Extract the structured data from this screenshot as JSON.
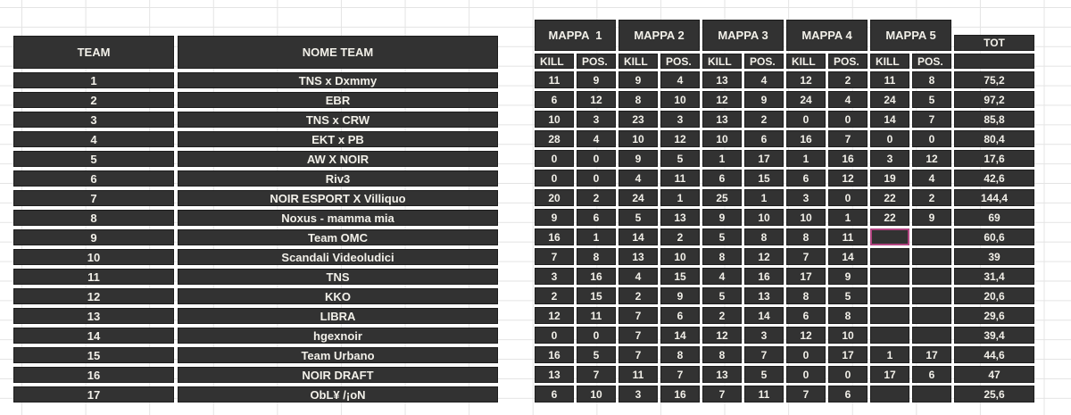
{
  "sheet": {
    "left_table": {
      "col_headers": [
        "TEAM",
        "NOME TEAM"
      ],
      "rows": [
        {
          "rank": "1",
          "name": "TNS x Dxmmy"
        },
        {
          "rank": "2",
          "name": "EBR"
        },
        {
          "rank": "3",
          "name": "TNS x CRW"
        },
        {
          "rank": "4",
          "name": "EKT x PB"
        },
        {
          "rank": "5",
          "name": "AW X NOIR"
        },
        {
          "rank": "6",
          "name": "Riv3"
        },
        {
          "rank": "7",
          "name": "NOIR ESPORT X Villiquo"
        },
        {
          "rank": "8",
          "name": "Noxus - mamma mia"
        },
        {
          "rank": "9",
          "name": "Team OMC"
        },
        {
          "rank": "10",
          "name": "Scandali Videoludici"
        },
        {
          "rank": "11",
          "name": "TNS"
        },
        {
          "rank": "12",
          "name": "KKO"
        },
        {
          "rank": "13",
          "name": "LIBRA"
        },
        {
          "rank": "14",
          "name": "hgexnoir"
        },
        {
          "rank": "15",
          "name": "Team Urbano"
        },
        {
          "rank": "16",
          "name": "NOIR DRAFT"
        },
        {
          "rank": "17",
          "name": "ObL¥ /¡oN"
        }
      ]
    },
    "right_table": {
      "map_headers": [
        "MAPPA  1",
        "MAPPA 2",
        "MAPPA 3",
        "MAPPA 4",
        "MAPPA 5"
      ],
      "kill_label": "KILL",
      "pos_label": "POS.",
      "tot_label": "TOT",
      "rows": [
        {
          "cells": [
            "11",
            "9",
            "9",
            "4",
            "13",
            "4",
            "12",
            "2",
            "11",
            "8"
          ],
          "tot": "75,2"
        },
        {
          "cells": [
            "6",
            "12",
            "8",
            "10",
            "12",
            "9",
            "24",
            "4",
            "24",
            "5"
          ],
          "tot": "97,2"
        },
        {
          "cells": [
            "10",
            "3",
            "23",
            "3",
            "13",
            "2",
            "0",
            "0",
            "14",
            "7"
          ],
          "tot": "85,8"
        },
        {
          "cells": [
            "28",
            "4",
            "10",
            "12",
            "10",
            "6",
            "16",
            "7",
            "0",
            "0"
          ],
          "tot": "80,4"
        },
        {
          "cells": [
            "0",
            "0",
            "9",
            "5",
            "1",
            "17",
            "1",
            "16",
            "3",
            "12"
          ],
          "tot": "17,6"
        },
        {
          "cells": [
            "0",
            "0",
            "4",
            "11",
            "6",
            "15",
            "6",
            "12",
            "19",
            "4"
          ],
          "tot": "42,6"
        },
        {
          "cells": [
            "20",
            "2",
            "24",
            "1",
            "25",
            "1",
            "3",
            "0",
            "22",
            "2"
          ],
          "tot": "144,4"
        },
        {
          "cells": [
            "9",
            "6",
            "5",
            "13",
            "9",
            "10",
            "10",
            "1",
            "22",
            "9"
          ],
          "tot": "69"
        },
        {
          "cells": [
            "16",
            "1",
            "14",
            "2",
            "5",
            "8",
            "8",
            "11",
            "",
            ""
          ],
          "tot": "60,6"
        },
        {
          "cells": [
            "7",
            "8",
            "13",
            "10",
            "8",
            "12",
            "7",
            "14",
            "",
            ""
          ],
          "tot": "39"
        },
        {
          "cells": [
            "3",
            "16",
            "4",
            "15",
            "4",
            "16",
            "17",
            "9",
            "",
            ""
          ],
          "tot": "31,4"
        },
        {
          "cells": [
            "2",
            "15",
            "2",
            "9",
            "5",
            "13",
            "8",
            "5",
            "",
            ""
          ],
          "tot": "20,6"
        },
        {
          "cells": [
            "12",
            "11",
            "7",
            "6",
            "2",
            "14",
            "6",
            "8",
            "",
            ""
          ],
          "tot": "29,6"
        },
        {
          "cells": [
            "0",
            "0",
            "7",
            "14",
            "12",
            "3",
            "12",
            "10",
            "",
            ""
          ],
          "tot": "39,4"
        },
        {
          "cells": [
            "16",
            "5",
            "7",
            "8",
            "8",
            "7",
            "0",
            "17",
            "1",
            "17"
          ],
          "tot": "44,6"
        },
        {
          "cells": [
            "13",
            "7",
            "11",
            "7",
            "13",
            "5",
            "0",
            "0",
            "17",
            "6"
          ],
          "tot": "47"
        },
        {
          "cells": [
            "6",
            "10",
            "3",
            "16",
            "7",
            "11",
            "7",
            "6",
            "",
            ""
          ],
          "tot": "25,6"
        }
      ],
      "selected_cell": {
        "row_index": 8,
        "cell_index": 8
      }
    },
    "colors": {
      "cell_bg": "#323232",
      "cell_border": "#1d1d1d",
      "cell_text": "#f2f0e9",
      "gridline": "#e4e4e4",
      "selection_border": "#b0437f"
    }
  }
}
